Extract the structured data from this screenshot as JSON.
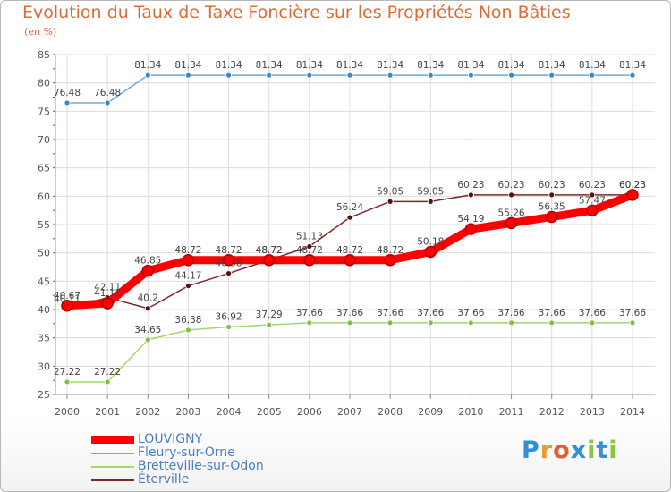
{
  "chart_data": {
    "type": "line",
    "title": "Evolution du Taux de Taxe Foncière sur les Propriétés Non Bâties",
    "subtitle": "(en %)",
    "xlabel": "",
    "ylabel": "",
    "ylim": [
      25,
      85
    ],
    "y_ticks": [
      25,
      30,
      35,
      40,
      45,
      50,
      55,
      60,
      65,
      70,
      75,
      80,
      85
    ],
    "categories": [
      "2000",
      "2001",
      "2002",
      "2003",
      "2004",
      "2005",
      "2006",
      "2007",
      "2008",
      "2009",
      "2010",
      "2011",
      "2012",
      "2013",
      "2014"
    ],
    "grid": true,
    "legend_position": "bottom-left",
    "series": [
      {
        "name": "LOUVIGNY",
        "color": "#ff0000",
        "marker_color": "#e00000",
        "style": "thick",
        "values": [
          40.67,
          41.11,
          46.85,
          48.72,
          48.72,
          48.72,
          48.72,
          48.72,
          48.72,
          50.18,
          54.19,
          55.26,
          56.35,
          57.47,
          60.23
        ],
        "labels": [
          "40.67",
          "41.11",
          "46.85",
          "48.72",
          "48.72",
          "48.72",
          "48.72",
          "48.72",
          "48.72",
          "50.18",
          "54.19",
          "55.26",
          "56.35",
          "57.47",
          "60.23"
        ]
      },
      {
        "name": "Fleury-sur-Orne",
        "color": "#6fa8dc",
        "marker_color": "#3d85c6",
        "style": "thin",
        "values": [
          76.48,
          76.48,
          81.34,
          81.34,
          81.34,
          81.34,
          81.34,
          81.34,
          81.34,
          81.34,
          81.34,
          81.34,
          81.34,
          81.34,
          81.34
        ],
        "labels": [
          "76.48",
          "76.48",
          "81.34",
          "81.34",
          "81.34",
          "81.34",
          "81.34",
          "81.34",
          "81.34",
          "81.34",
          "81.34",
          "81.34",
          "81.34",
          "81.34",
          "81.34"
        ]
      },
      {
        "name": "Bretteville-sur-Odon",
        "color": "#9fd86b",
        "marker_color": "#7fc241",
        "style": "thin",
        "values": [
          27.22,
          27.22,
          34.65,
          36.38,
          36.92,
          37.29,
          37.66,
          37.66,
          37.66,
          37.66,
          37.66,
          37.66,
          37.66,
          37.66,
          37.66
        ],
        "labels": [
          "27.22",
          "27.22",
          "34.65",
          "36.38",
          "36.92",
          "37.29",
          "37.66",
          "37.66",
          "37.66",
          "37.66",
          "37.66",
          "37.66",
          "37.66",
          "37.66",
          "37.66"
        ]
      },
      {
        "name": "Éterville",
        "color": "#7a2a2a",
        "marker_color": "#5a1010",
        "style": "thin",
        "values": [
          40.11,
          42.11,
          40.2,
          44.17,
          46.38,
          48.72,
          51.13,
          56.24,
          59.05,
          59.05,
          60.23,
          60.23,
          60.23,
          60.23,
          60.23
        ],
        "labels": [
          "40.11",
          "42.11",
          "40.2",
          "44.17",
          "46.38",
          "48.72",
          "51.13",
          "56.24",
          "59.05",
          "59.05",
          "60.23",
          "60.23",
          "60.23",
          "60.23",
          "60.23"
        ]
      }
    ]
  },
  "logo": {
    "text": [
      "P",
      "r",
      "o",
      "x",
      "i",
      "t",
      "i"
    ],
    "colors": [
      "#2f8fd8",
      "#e89a2c",
      "#e85c2c",
      "#2f8fd8",
      "#8cc63f",
      "#2f8fd8",
      "#8cc63f"
    ]
  }
}
